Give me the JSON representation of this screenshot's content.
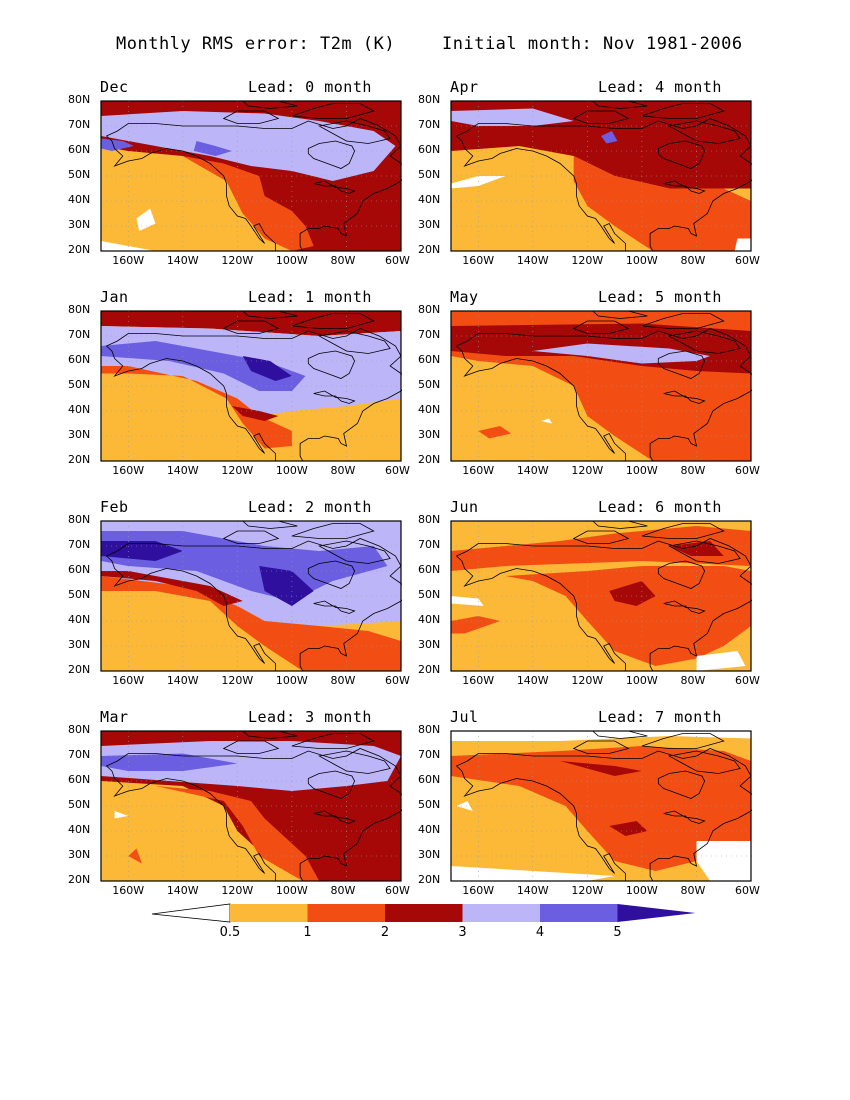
{
  "header": {
    "left_title": "Monthly RMS error: T2m (K)",
    "right_title": "Initial month: Nov 1981-2006"
  },
  "axes": {
    "y_ticks": [
      "80N",
      "70N",
      "60N",
      "50N",
      "40N",
      "30N",
      "20N"
    ],
    "x_ticks": [
      "160W",
      "140W",
      "120W",
      "100W",
      "80W",
      "60W"
    ]
  },
  "panels": [
    {
      "month": "Dec",
      "lead": "Lead: 0 month"
    },
    {
      "month": "Apr",
      "lead": "Lead: 4 month"
    },
    {
      "month": "Jan",
      "lead": "Lead: 1 month"
    },
    {
      "month": "May",
      "lead": "Lead: 5 month"
    },
    {
      "month": "Feb",
      "lead": "Lead: 2 month"
    },
    {
      "month": "Jun",
      "lead": "Lead: 6 month"
    },
    {
      "month": "Mar",
      "lead": "Lead: 3 month"
    },
    {
      "month": "Jul",
      "lead": "Lead: 7 month"
    }
  ],
  "colorbar": {
    "labels": [
      "0.5",
      "1",
      "2",
      "3",
      "4",
      "5"
    ],
    "colors": [
      "#ffffff",
      "#fbb937",
      "#f24e13",
      "#a50806",
      "#bcb6f9",
      "#6b5ee0",
      "#2e0f9e"
    ]
  },
  "colors": {
    "lt05": "#ffffff",
    "c05_1": "#fbb937",
    "c1_2": "#f24e13",
    "c2_3": "#a50806",
    "c3_4": "#bcb6f9",
    "c4_5": "#6b5ee0",
    "gt5": "#2e0f9e"
  }
}
